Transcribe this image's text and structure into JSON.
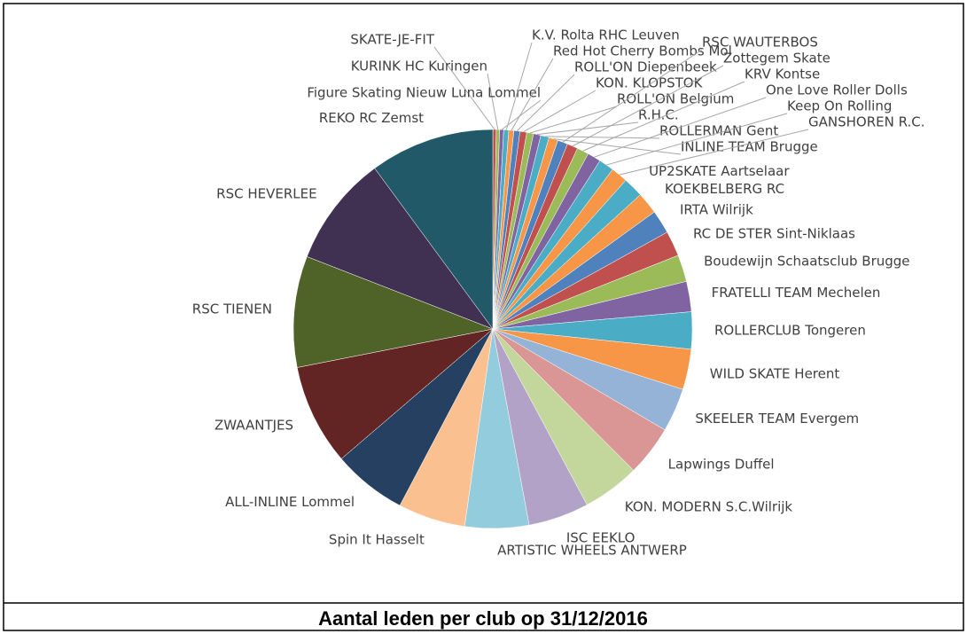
{
  "chart_data": {
    "type": "pie",
    "title": "Aantal leden per club op 31/12/2016",
    "categories": [
      "SKATE-JE-FIT",
      "KURINK HC Kuringen",
      "Figure Skating Nieuw Luna Lommel",
      "K.V. Rolta RHC Leuven",
      "Red Hot Cherry Bombs Mol",
      "ROLL'ON Diepenbeek",
      "KON. KLOPSTOK",
      "ROLL'ON Belgium",
      "R.H.C.",
      "ROLLERMAN Gent",
      "INLINE TEAM Brugge",
      "RSC WAUTERBOS",
      "Zottegem Skate",
      "KRV Kontse",
      "One Love Roller Dolls",
      "Keep On Rolling",
      "GANSHOREN R.C.",
      "UP2SKATE Aartselaar",
      "KOEKBELBERG RC",
      "IRTA Wilrijk",
      "RC DE STER Sint-Niklaas",
      "Boudewijn Schaatsclub Brugge",
      "FRATELLI TEAM Mechelen",
      "ROLLERCLUB Tongeren",
      "WILD SKATE Herent",
      "SKEELER TEAM Evergem",
      "Lapwings Duffel",
      "KON. MODERN S.C.Wilrijk",
      "ISC EEKLO",
      "ARTISTIC WHEELS ANTWERP",
      "Spin It Hasselt",
      "ALL-INLINE Lommel",
      "ZWAANTJES",
      "RSC TIENEN",
      "RSC HEVERLEE",
      "REKO RC Zemst"
    ],
    "values": [
      1,
      1,
      1.2,
      1.5,
      1.5,
      1.8,
      2,
      2,
      2.2,
      2.5,
      2.7,
      3,
      3.2,
      3.5,
      4,
      4.5,
      5,
      6,
      6.5,
      7,
      7.5,
      8,
      9,
      11,
      12,
      13,
      15,
      17,
      18,
      19,
      20,
      22,
      30,
      33,
      33,
      37
    ],
    "colors": [
      "#C0504D",
      "#9BBB59",
      "#8064A2",
      "#4BACC6",
      "#F79646",
      "#4F81BD",
      "#C0504D",
      "#9BBB59",
      "#8064A2",
      "#4BACC6",
      "#F79646",
      "#4F81BD",
      "#C0504D",
      "#9BBB59",
      "#8064A2",
      "#4BACC6",
      "#F79646",
      "#4BACC6",
      "#F79646",
      "#4F81BD",
      "#C0504D",
      "#9BBB59",
      "#8064A2",
      "#4BACC6",
      "#F79646",
      "#95B3D7",
      "#D99694",
      "#C3D69B",
      "#B3A2C7",
      "#93CDDD",
      "#FAC090",
      "#254061",
      "#632523",
      "#4F6228",
      "#403152",
      "#215968"
    ]
  }
}
